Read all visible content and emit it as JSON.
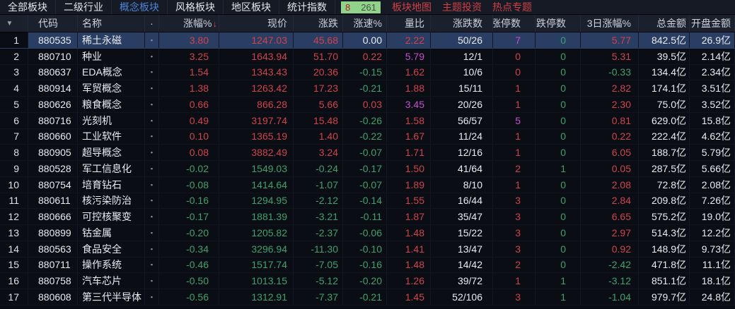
{
  "nav": {
    "tabs": [
      {
        "label": "全部板块",
        "active": false
      },
      {
        "label": "二级行业",
        "active": false
      },
      {
        "label": "概念板块",
        "active": true
      },
      {
        "label": "风格板块",
        "active": false
      },
      {
        "label": "地区板块",
        "active": false
      },
      {
        "label": "统计指数",
        "active": false
      }
    ],
    "badge": {
      "up_count": "8",
      "total_count": "261"
    },
    "links": [
      "板块地图",
      "主题投资",
      "热点专题"
    ]
  },
  "table": {
    "columns": [
      {
        "key": "num",
        "label": "",
        "icon": "caret-down-icon"
      },
      {
        "key": "code",
        "label": "代码"
      },
      {
        "key": "name",
        "label": "名称"
      },
      {
        "key": "marker",
        "label": "·"
      },
      {
        "key": "chg_pct",
        "label": "涨幅%",
        "sort": "desc"
      },
      {
        "key": "price",
        "label": "现价"
      },
      {
        "key": "change",
        "label": "涨跌"
      },
      {
        "key": "speed",
        "label": "涨速%"
      },
      {
        "key": "vol_ratio",
        "label": "量比"
      },
      {
        "key": "updown",
        "label": "涨跌数"
      },
      {
        "key": "limit_up",
        "label": "涨停数"
      },
      {
        "key": "limit_down",
        "label": "跌停数"
      },
      {
        "key": "chg_3d",
        "label": "3日涨幅%"
      },
      {
        "key": "total_amt",
        "label": "总金额"
      },
      {
        "key": "open_amt",
        "label": "开盘金额"
      }
    ],
    "rows": [
      {
        "num": "1",
        "code": "880535",
        "name": "稀土永磁",
        "marker": "▪",
        "chg_pct": "3.80",
        "price": "1247.03",
        "change": "45.68",
        "speed": "0.00",
        "vol_ratio": "2.22",
        "updown": "50/26",
        "limit_up": "7",
        "limit_down": "0",
        "chg_3d": "5.77",
        "total_amt": "842.5亿",
        "open_amt": "26.9亿",
        "selected": true
      },
      {
        "num": "2",
        "code": "880710",
        "name": "种业",
        "marker": "▪",
        "chg_pct": "3.25",
        "price": "1643.94",
        "change": "51.70",
        "speed": "0.22",
        "vol_ratio": "5.79",
        "updown": "12/1",
        "limit_up": "0",
        "limit_down": "0",
        "chg_3d": "5.31",
        "total_amt": "39.5亿",
        "open_amt": "2.14亿",
        "selected": false
      },
      {
        "num": "3",
        "code": "880637",
        "name": "EDA概念",
        "marker": "▪",
        "chg_pct": "1.54",
        "price": "1343.43",
        "change": "20.36",
        "speed": "-0.15",
        "vol_ratio": "1.62",
        "updown": "10/6",
        "limit_up": "0",
        "limit_down": "0",
        "chg_3d": "-0.33",
        "total_amt": "134.4亿",
        "open_amt": "2.34亿",
        "selected": false
      },
      {
        "num": "4",
        "code": "880914",
        "name": "军贸概念",
        "marker": "▪",
        "chg_pct": "1.38",
        "price": "1263.42",
        "change": "17.23",
        "speed": "-0.21",
        "vol_ratio": "1.88",
        "updown": "15/11",
        "limit_up": "1",
        "limit_down": "0",
        "chg_3d": "2.82",
        "total_amt": "174.1亿",
        "open_amt": "3.51亿",
        "selected": false
      },
      {
        "num": "5",
        "code": "880626",
        "name": "粮食概念",
        "marker": "▪",
        "chg_pct": "0.66",
        "price": "866.28",
        "change": "5.66",
        "speed": "0.03",
        "vol_ratio": "3.45",
        "updown": "20/26",
        "limit_up": "1",
        "limit_down": "0",
        "chg_3d": "2.30",
        "total_amt": "75.0亿",
        "open_amt": "3.52亿",
        "selected": false
      },
      {
        "num": "6",
        "code": "880716",
        "name": "光刻机",
        "marker": "▪",
        "chg_pct": "0.49",
        "price": "3197.74",
        "change": "15.48",
        "speed": "-0.26",
        "vol_ratio": "1.58",
        "updown": "56/57",
        "limit_up": "5",
        "limit_down": "0",
        "chg_3d": "0.81",
        "total_amt": "629.0亿",
        "open_amt": "15.8亿",
        "selected": false
      },
      {
        "num": "7",
        "code": "880660",
        "name": "工业软件",
        "marker": "▪",
        "chg_pct": "0.10",
        "price": "1365.19",
        "change": "1.40",
        "speed": "-0.22",
        "vol_ratio": "1.67",
        "updown": "11/24",
        "limit_up": "1",
        "limit_down": "0",
        "chg_3d": "0.22",
        "total_amt": "222.4亿",
        "open_amt": "4.62亿",
        "selected": false
      },
      {
        "num": "8",
        "code": "880905",
        "name": "超导概念",
        "marker": "▪",
        "chg_pct": "0.08",
        "price": "3882.49",
        "change": "3.24",
        "speed": "-0.07",
        "vol_ratio": "1.71",
        "updown": "12/16",
        "limit_up": "1",
        "limit_down": "0",
        "chg_3d": "6.05",
        "total_amt": "188.7亿",
        "open_amt": "5.79亿",
        "selected": false
      },
      {
        "num": "9",
        "code": "880528",
        "name": "军工信息化",
        "marker": "▪",
        "chg_pct": "-0.02",
        "price": "1549.03",
        "change": "-0.24",
        "speed": "-0.17",
        "vol_ratio": "1.50",
        "updown": "41/64",
        "limit_up": "2",
        "limit_down": "1",
        "chg_3d": "0.05",
        "total_amt": "287.5亿",
        "open_amt": "5.66亿",
        "selected": false
      },
      {
        "num": "10",
        "code": "880754",
        "name": "培育钻石",
        "marker": "▪",
        "chg_pct": "-0.08",
        "price": "1414.64",
        "change": "-1.07",
        "speed": "-0.07",
        "vol_ratio": "1.89",
        "updown": "8/10",
        "limit_up": "1",
        "limit_down": "0",
        "chg_3d": "2.08",
        "total_amt": "72.8亿",
        "open_amt": "2.08亿",
        "selected": false
      },
      {
        "num": "11",
        "code": "880611",
        "name": "核污染防治",
        "marker": "▪",
        "chg_pct": "-0.16",
        "price": "1294.95",
        "change": "-2.12",
        "speed": "-0.14",
        "vol_ratio": "1.55",
        "updown": "16/44",
        "limit_up": "3",
        "limit_down": "0",
        "chg_3d": "2.84",
        "total_amt": "209.8亿",
        "open_amt": "7.26亿",
        "selected": false
      },
      {
        "num": "12",
        "code": "880666",
        "name": "可控核聚变",
        "marker": "▪",
        "chg_pct": "-0.17",
        "price": "1881.39",
        "change": "-3.21",
        "speed": "-0.11",
        "vol_ratio": "1.87",
        "updown": "35/47",
        "limit_up": "3",
        "limit_down": "0",
        "chg_3d": "6.65",
        "total_amt": "575.2亿",
        "open_amt": "19.0亿",
        "selected": false
      },
      {
        "num": "13",
        "code": "880899",
        "name": "钴金属",
        "marker": "▪",
        "chg_pct": "-0.20",
        "price": "1205.82",
        "change": "-2.37",
        "speed": "-0.06",
        "vol_ratio": "1.48",
        "updown": "15/22",
        "limit_up": "3",
        "limit_down": "0",
        "chg_3d": "2.97",
        "total_amt": "514.3亿",
        "open_amt": "12.2亿",
        "selected": false
      },
      {
        "num": "14",
        "code": "880563",
        "name": "食品安全",
        "marker": "▪",
        "chg_pct": "-0.34",
        "price": "3296.94",
        "change": "-11.30",
        "speed": "-0.10",
        "vol_ratio": "1.41",
        "updown": "13/47",
        "limit_up": "3",
        "limit_down": "0",
        "chg_3d": "0.92",
        "total_amt": "148.9亿",
        "open_amt": "9.73亿",
        "selected": false
      },
      {
        "num": "15",
        "code": "880711",
        "name": "操作系统",
        "marker": "▪",
        "chg_pct": "-0.46",
        "price": "1517.74",
        "change": "-7.05",
        "speed": "-0.16",
        "vol_ratio": "1.48",
        "updown": "14/42",
        "limit_up": "2",
        "limit_down": "0",
        "chg_3d": "-2.42",
        "total_amt": "471.8亿",
        "open_amt": "11.1亿",
        "selected": false
      },
      {
        "num": "16",
        "code": "880758",
        "name": "汽车芯片",
        "marker": "▪",
        "chg_pct": "-0.50",
        "price": "1013.15",
        "change": "-5.12",
        "speed": "-0.20",
        "vol_ratio": "1.26",
        "updown": "39/72",
        "limit_up": "1",
        "limit_down": "1",
        "chg_3d": "-3.12",
        "total_amt": "851.1亿",
        "open_amt": "18.1亿",
        "selected": false
      },
      {
        "num": "17",
        "code": "880608",
        "name": "第三代半导体",
        "marker": "▪",
        "chg_pct": "-0.56",
        "price": "1312.91",
        "change": "-7.37",
        "speed": "-0.21",
        "vol_ratio": "1.45",
        "updown": "52/106",
        "limit_up": "3",
        "limit_down": "1",
        "chg_3d": "-1.04",
        "total_amt": "979.7亿",
        "open_amt": "24.8亿",
        "selected": false
      }
    ]
  },
  "colors": {
    "up_red": "#d0434c",
    "down_green": "#3da26e",
    "neutral_white": "#eceef2",
    "high_magenta": "#c44fd0",
    "active_tab_blue": "#4d84d6",
    "badge_green": "#92d38b",
    "link_red": "#cf4046",
    "selected_row_blue": "#2a3d63"
  }
}
